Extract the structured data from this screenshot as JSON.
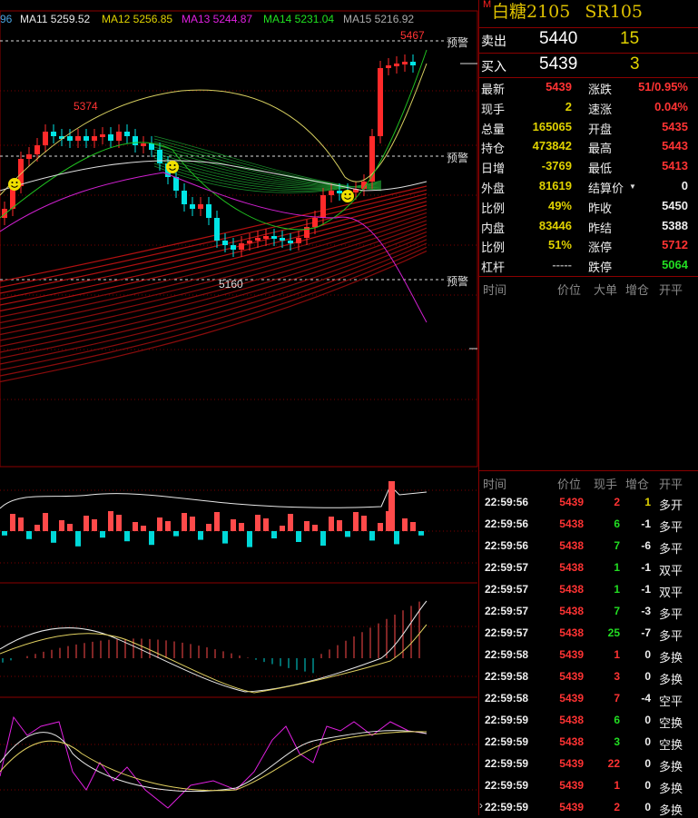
{
  "ma_legend": [
    {
      "text": "96",
      "color": "#4aa3df"
    },
    {
      "text": "MA11 5259.52",
      "color": "#e8e8e8"
    },
    {
      "text": "MA12 5256.85",
      "color": "#e0d200"
    },
    {
      "text": "MA13 5244.87",
      "color": "#e020e0"
    },
    {
      "text": "MA14 5231.04",
      "color": "#20e020"
    },
    {
      "text": "MA15 5216.92",
      "color": "#aaaaaa"
    }
  ],
  "chart_labels": {
    "high": "5467",
    "mid_high": "5374",
    "low": "5160",
    "alert": "预警"
  },
  "instrument": {
    "marker": "M",
    "name": "白糖2105",
    "code": "SR105"
  },
  "orderbook": {
    "ask": {
      "label": "卖出",
      "price": "5440",
      "qty": "15"
    },
    "bid": {
      "label": "买入",
      "price": "5439",
      "qty": "3"
    }
  },
  "quote": [
    [
      {
        "t": "最新",
        "c": "white"
      },
      {
        "t": "5439",
        "c": "red"
      },
      {
        "t": "涨跌",
        "c": "white"
      },
      {
        "t": "51/0.95%",
        "c": "red"
      }
    ],
    [
      {
        "t": "现手",
        "c": "white"
      },
      {
        "t": "2",
        "c": "yellow"
      },
      {
        "t": "速涨",
        "c": "white"
      },
      {
        "t": "0.04%",
        "c": "red"
      }
    ],
    [
      {
        "t": "总量",
        "c": "white"
      },
      {
        "t": "165065",
        "c": "yellow"
      },
      {
        "t": "开盘",
        "c": "white"
      },
      {
        "t": "5435",
        "c": "red"
      }
    ],
    [
      {
        "t": "持仓",
        "c": "white"
      },
      {
        "t": "473842",
        "c": "yellow"
      },
      {
        "t": "最高",
        "c": "white"
      },
      {
        "t": "5443",
        "c": "red"
      }
    ],
    [
      {
        "t": "日增",
        "c": "white"
      },
      {
        "t": "-3769",
        "c": "yellow"
      },
      {
        "t": "最低",
        "c": "white"
      },
      {
        "t": "5413",
        "c": "red"
      }
    ],
    [
      {
        "t": "外盘",
        "c": "white"
      },
      {
        "t": "81619",
        "c": "yellow"
      },
      {
        "t": "结算价",
        "c": "white"
      },
      {
        "t": "0",
        "c": "white"
      }
    ],
    [
      {
        "t": "比例",
        "c": "white"
      },
      {
        "t": "49%",
        "c": "yellow"
      },
      {
        "t": "昨收",
        "c": "white"
      },
      {
        "t": "5450",
        "c": "white"
      }
    ],
    [
      {
        "t": "内盘",
        "c": "white"
      },
      {
        "t": "83446",
        "c": "yellow"
      },
      {
        "t": "昨结",
        "c": "white"
      },
      {
        "t": "5388",
        "c": "white"
      }
    ],
    [
      {
        "t": "比例",
        "c": "white"
      },
      {
        "t": "51%",
        "c": "yellow"
      },
      {
        "t": "涨停",
        "c": "white"
      },
      {
        "t": "5712",
        "c": "red"
      }
    ],
    [
      {
        "t": "杠杆",
        "c": "white"
      },
      {
        "t": "-----",
        "c": "gray"
      },
      {
        "t": "跌停",
        "c": "white"
      },
      {
        "t": "5064",
        "c": "green"
      }
    ]
  ],
  "bigorder_header": [
    "时间",
    "价位",
    "大单",
    "增仓",
    "开平"
  ],
  "tick_header": [
    "时间",
    "价位",
    "现手",
    "增仓",
    "开平"
  ],
  "ticks": [
    [
      "22:59:56",
      "5439",
      "2",
      "1",
      "多开"
    ],
    [
      "22:59:56",
      "5438",
      "6",
      "-1",
      "多平"
    ],
    [
      "22:59:56",
      "5438",
      "7",
      "-6",
      "多平"
    ],
    [
      "22:59:57",
      "5438",
      "1",
      "-1",
      "双平"
    ],
    [
      "22:59:57",
      "5438",
      "1",
      "-1",
      "双平"
    ],
    [
      "22:59:57",
      "5438",
      "7",
      "-3",
      "多平"
    ],
    [
      "22:59:57",
      "5438",
      "25",
      "-7",
      "多平"
    ],
    [
      "22:59:58",
      "5439",
      "1",
      "0",
      "多换"
    ],
    [
      "22:59:58",
      "5439",
      "3",
      "0",
      "多换"
    ],
    [
      "22:59:58",
      "5439",
      "7",
      "-4",
      "空平"
    ],
    [
      "22:59:59",
      "5438",
      "6",
      "0",
      "空换"
    ],
    [
      "22:59:59",
      "5438",
      "3",
      "0",
      "空换"
    ],
    [
      "22:59:59",
      "5439",
      "22",
      "0",
      "多换"
    ],
    [
      "22:59:59",
      "5439",
      "1",
      "0",
      "多换"
    ],
    [
      "22:59:59",
      "5439",
      "2",
      "0",
      "多换"
    ]
  ],
  "tick_colors": {
    "price_up": "#ff3333",
    "price_down": "#ff3333",
    "qty_colors": [
      "red",
      "green",
      "green",
      "green",
      "green",
      "green",
      "green",
      "red",
      "red",
      "red",
      "green",
      "green",
      "red",
      "red",
      "red"
    ],
    "oi_colors": [
      "yellow",
      "white",
      "white",
      "white",
      "white",
      "white",
      "white",
      "white",
      "white",
      "white",
      "white",
      "white",
      "white",
      "white",
      "white"
    ]
  }
}
